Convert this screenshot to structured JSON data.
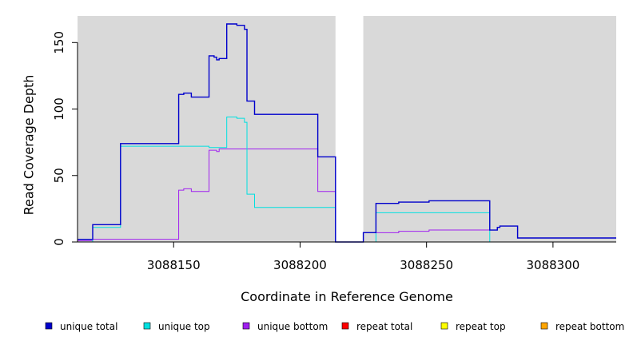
{
  "chart_data": {
    "type": "line",
    "xlabel": "Coordinate in Reference Genome",
    "ylabel": "Read Coverage Depth",
    "xlim": [
      3088112,
      3088325
    ],
    "ylim": [
      0,
      170
    ],
    "xticks": [
      3088150,
      3088200,
      3088250,
      3088300
    ],
    "yticks": [
      0,
      50,
      100,
      150
    ],
    "plot_background": "#d9d9d9",
    "gap_region": [
      3088214,
      3088225
    ],
    "legend_position": "bottom",
    "series": [
      {
        "name": "unique total",
        "color": "#0000cc",
        "points": [
          [
            3088112,
            2
          ],
          [
            3088118,
            2
          ],
          [
            3088118,
            13
          ],
          [
            3088129,
            13
          ],
          [
            3088129,
            74
          ],
          [
            3088152,
            74
          ],
          [
            3088152,
            111
          ],
          [
            3088154,
            111
          ],
          [
            3088154,
            112
          ],
          [
            3088157,
            112
          ],
          [
            3088157,
            109
          ],
          [
            3088164,
            109
          ],
          [
            3088164,
            140
          ],
          [
            3088166,
            140
          ],
          [
            3088166,
            139
          ],
          [
            3088167,
            139
          ],
          [
            3088167,
            137
          ],
          [
            3088168,
            137
          ],
          [
            3088168,
            138
          ],
          [
            3088171,
            138
          ],
          [
            3088171,
            164
          ],
          [
            3088175,
            164
          ],
          [
            3088175,
            163
          ],
          [
            3088178,
            163
          ],
          [
            3088178,
            160
          ],
          [
            3088179,
            160
          ],
          [
            3088179,
            106
          ],
          [
            3088182,
            106
          ],
          [
            3088182,
            96
          ],
          [
            3088207,
            96
          ],
          [
            3088207,
            64
          ],
          [
            3088214,
            64
          ],
          [
            3088214,
            0
          ],
          [
            3088225,
            0
          ],
          [
            3088225,
            7
          ],
          [
            3088230,
            7
          ],
          [
            3088230,
            29
          ],
          [
            3088239,
            29
          ],
          [
            3088239,
            30
          ],
          [
            3088251,
            30
          ],
          [
            3088251,
            31
          ],
          [
            3088275,
            31
          ],
          [
            3088275,
            9
          ],
          [
            3088278,
            9
          ],
          [
            3088278,
            11
          ],
          [
            3088279,
            11
          ],
          [
            3088279,
            12
          ],
          [
            3088286,
            12
          ],
          [
            3088286,
            3
          ],
          [
            3088325,
            3
          ]
        ]
      },
      {
        "name": "unique top",
        "color": "#00e0e0",
        "points": [
          [
            3088112,
            0
          ],
          [
            3088118,
            0
          ],
          [
            3088118,
            11
          ],
          [
            3088129,
            11
          ],
          [
            3088129,
            72
          ],
          [
            3088152,
            72
          ],
          [
            3088152,
            72
          ],
          [
            3088164,
            72
          ],
          [
            3088164,
            71
          ],
          [
            3088171,
            71
          ],
          [
            3088171,
            94
          ],
          [
            3088175,
            94
          ],
          [
            3088175,
            93
          ],
          [
            3088178,
            93
          ],
          [
            3088178,
            90
          ],
          [
            3088179,
            90
          ],
          [
            3088179,
            36
          ],
          [
            3088182,
            36
          ],
          [
            3088182,
            26
          ],
          [
            3088214,
            26
          ],
          [
            3088214,
            0
          ],
          [
            3088230,
            0
          ],
          [
            3088230,
            22
          ],
          [
            3088275,
            22
          ],
          [
            3088275,
            0
          ],
          [
            3088325,
            0
          ]
        ]
      },
      {
        "name": "unique bottom",
        "color": "#a020f0",
        "points": [
          [
            3088112,
            1
          ],
          [
            3088118,
            1
          ],
          [
            3088118,
            2
          ],
          [
            3088152,
            2
          ],
          [
            3088152,
            39
          ],
          [
            3088154,
            39
          ],
          [
            3088154,
            40
          ],
          [
            3088157,
            40
          ],
          [
            3088157,
            38
          ],
          [
            3088164,
            38
          ],
          [
            3088164,
            69
          ],
          [
            3088167,
            69
          ],
          [
            3088167,
            68
          ],
          [
            3088168,
            68
          ],
          [
            3088168,
            70
          ],
          [
            3088207,
            70
          ],
          [
            3088207,
            38
          ],
          [
            3088214,
            38
          ],
          [
            3088214,
            0
          ],
          [
            3088225,
            0
          ],
          [
            3088225,
            7
          ],
          [
            3088239,
            7
          ],
          [
            3088239,
            8
          ],
          [
            3088251,
            8
          ],
          [
            3088251,
            9
          ],
          [
            3088275,
            9
          ],
          [
            3088275,
            9
          ],
          [
            3088278,
            9
          ],
          [
            3088278,
            11
          ],
          [
            3088279,
            11
          ],
          [
            3088279,
            12
          ],
          [
            3088286,
            12
          ],
          [
            3088286,
            3
          ],
          [
            3088325,
            3
          ]
        ]
      },
      {
        "name": "repeat total",
        "color": "#ff0000",
        "points": [
          [
            3088112,
            0
          ],
          [
            3088325,
            0
          ]
        ]
      },
      {
        "name": "repeat top",
        "color": "#ffff00",
        "points": [
          [
            3088112,
            0
          ],
          [
            3088325,
            0
          ]
        ]
      },
      {
        "name": "repeat bottom",
        "color": "#ffa500",
        "points": [
          [
            3088112,
            0
          ],
          [
            3088325,
            0
          ]
        ]
      }
    ]
  }
}
